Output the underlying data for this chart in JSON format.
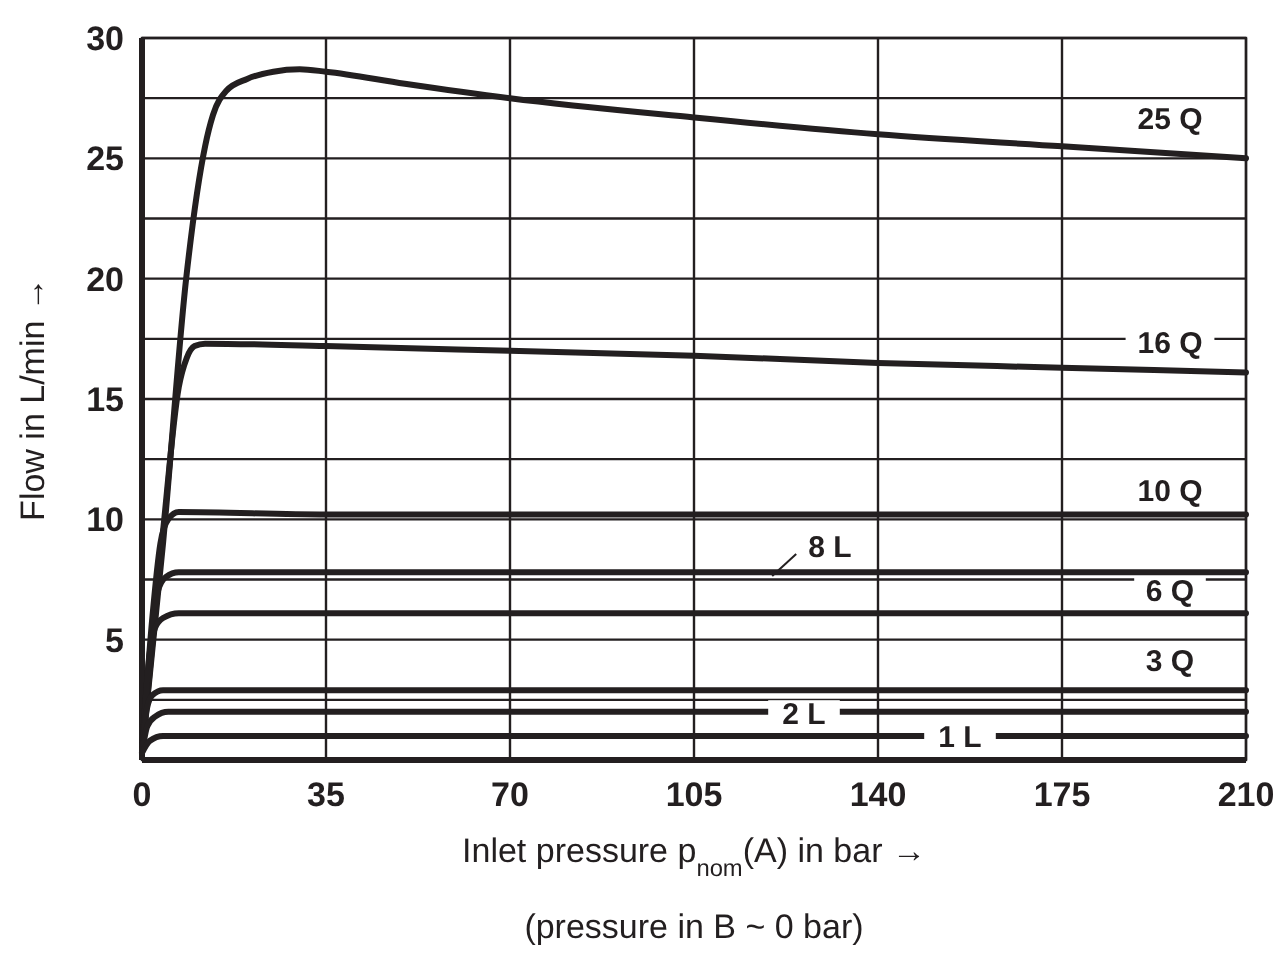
{
  "chart_data": {
    "type": "line",
    "xlabel": "Inlet pressure p$_{nom}$(A) in bar →",
    "ylabel": "Flow in L/min →",
    "xlim": [
      0,
      210
    ],
    "xticks": [
      0,
      35,
      70,
      105,
      140,
      175,
      210
    ],
    "ylim": [
      0,
      30
    ],
    "yticks": [
      {
        "value": 2.5,
        "label": null
      },
      5,
      {
        "value": 7.5,
        "label": null
      },
      10,
      {
        "value": 12.5,
        "label": null
      },
      15,
      {
        "value": 17.5,
        "label": null
      },
      20,
      {
        "value": 22.5,
        "label": null
      },
      25,
      {
        "value": 27.5,
        "label": null
      },
      30
    ],
    "grid": true,
    "marker": "none",
    "line_style": "solid",
    "series": [
      {
        "name": "25 Q",
        "color": "#231f20",
        "x": [
          0,
          4,
          8.4,
          12,
          13.5,
          16,
          20,
          25,
          30,
          35,
          50,
          70,
          105,
          140,
          175,
          210
        ],
        "values": [
          0.3,
          9,
          20,
          25.5,
          26.8,
          27.8,
          28.3,
          28.6,
          28.7,
          28.6,
          28.1,
          27.5,
          26.7,
          26,
          25.5,
          25
        ]
      },
      {
        "name": "16 Q",
        "color": "#231f20",
        "x": [
          0,
          4,
          7,
          8.5,
          10,
          12,
          35,
          70,
          105,
          140,
          175,
          210
        ],
        "values": [
          0.3,
          9.5,
          15.5,
          16.7,
          17.2,
          17.3,
          17.2,
          17,
          16.8,
          16.5,
          16.3,
          16.1
        ]
      },
      {
        "name": "10 Q",
        "color": "#231f20",
        "x": [
          0,
          2,
          3.5,
          5,
          7,
          35,
          210
        ],
        "values": [
          0.3,
          6,
          9,
          10,
          10.3,
          10.2,
          10.2
        ]
      },
      {
        "name": "8 L",
        "color": "#231f20",
        "x": [
          0,
          2,
          3,
          4.5,
          7,
          210
        ],
        "values": [
          0.3,
          5.5,
          7,
          7.6,
          7.8,
          7.8
        ]
      },
      {
        "name": "6 Q",
        "color": "#231f20",
        "x": [
          0,
          1.5,
          2.5,
          4,
          7,
          210
        ],
        "values": [
          0.3,
          4.5,
          5.5,
          5.9,
          6.1,
          6.1
        ]
      },
      {
        "name": "3 Q",
        "color": "#231f20",
        "x": [
          0,
          1,
          2,
          4,
          210
        ],
        "values": [
          0.3,
          2.2,
          2.7,
          2.9,
          2.9
        ]
      },
      {
        "name": "2 L",
        "color": "#231f20",
        "x": [
          0,
          1,
          2.5,
          5,
          210
        ],
        "values": [
          0.3,
          1.4,
          1.8,
          2,
          2
        ]
      },
      {
        "name": "1 L",
        "color": "#231f20",
        "x": [
          0,
          1.5,
          4,
          210
        ],
        "values": [
          0.3,
          0.8,
          1,
          1
        ]
      }
    ],
    "annotations": [
      "(pressure in B ~ 0 bar)"
    ]
  }
}
